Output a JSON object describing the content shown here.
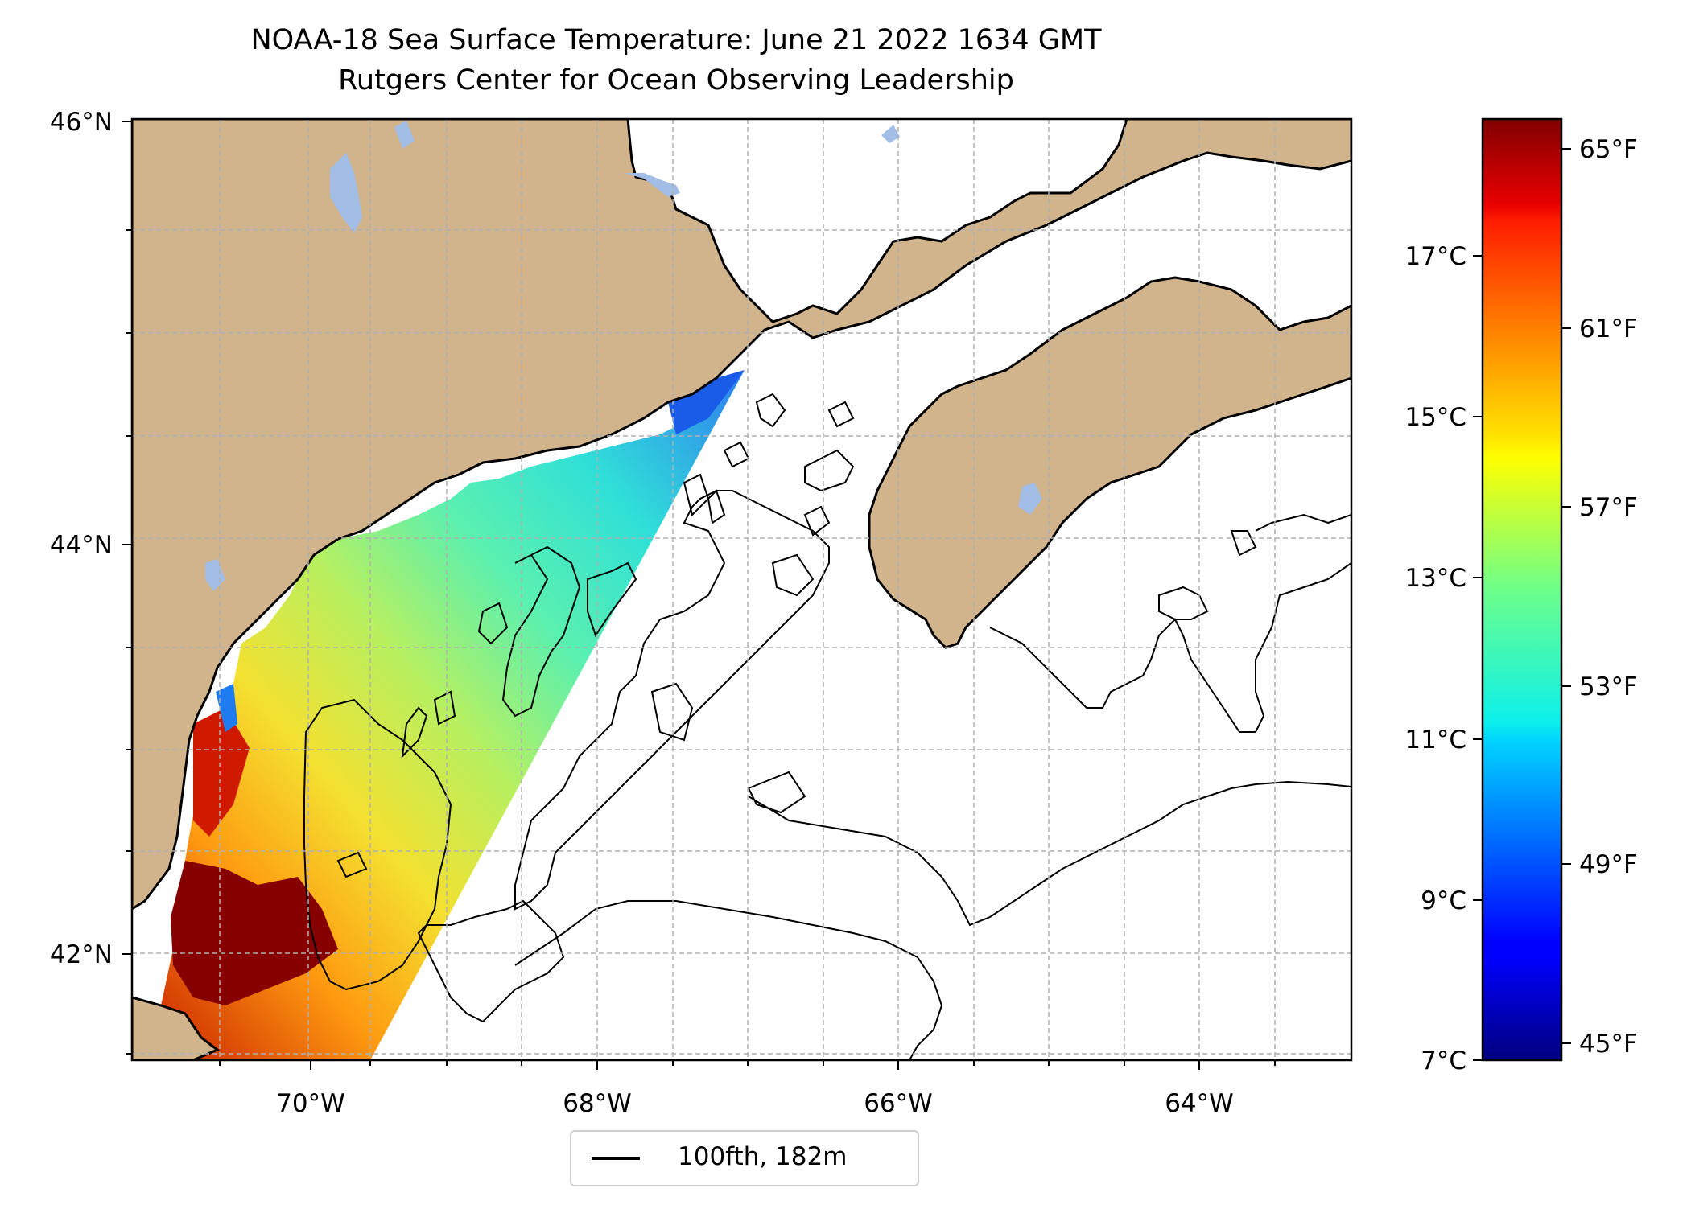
{
  "title": {
    "line1": "NOAA-18 Sea Surface Temperature: June 21 2022 1634 GMT",
    "line2": "Rutgers Center for Ocean Observing Leadership"
  },
  "map": {
    "lat_labels": [
      "46°N",
      "44°N",
      "42°N"
    ],
    "lon_labels": [
      "70°W",
      "68°W",
      "66°W",
      "64°W"
    ],
    "extent": {
      "lon_min": -71.2,
      "lon_max": -63.1,
      "lat_min": 41.45,
      "lat_max": 46.0
    },
    "colors": {
      "land": "#d2b48c",
      "lakes": "#a2bde6",
      "coast": "#000000",
      "grid": "#b0b0b0",
      "ocean": "#ffffff"
    }
  },
  "colorbar": {
    "colormap": "jet",
    "celsius_ticks": [
      "17°C",
      "15°C",
      "13°C",
      "11°C",
      "9°C",
      "7°C"
    ],
    "fahrenheit_ticks": [
      "65°F",
      "61°F",
      "57°F",
      "53°F",
      "49°F",
      "45°F"
    ],
    "range_celsius": [
      7,
      18.4
    ]
  },
  "legend": {
    "label": "100fth, 182m"
  }
}
